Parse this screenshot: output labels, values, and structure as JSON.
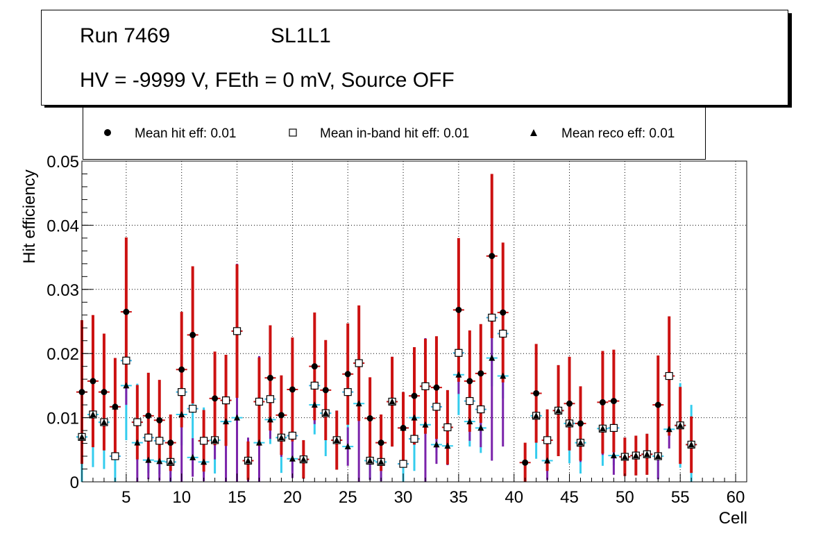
{
  "header": {
    "run": "Run 7469",
    "layer": "SL1L1",
    "conditions": "HV = -9999 V, FEth = 0 mV, Source OFF"
  },
  "legend": [
    {
      "label": "Mean hit  eff: 0.01",
      "marker": "filled-circle"
    },
    {
      "label": "Mean in-band hit eff: 0.01",
      "marker": "open-square"
    },
    {
      "label": "Mean reco eff: 0.01",
      "marker": "filled-triangle"
    }
  ],
  "chart_data": {
    "type": "scatter",
    "xlabel": "Cell",
    "ylabel": "Hit efficiency",
    "xlim": [
      1,
      61
    ],
    "ylim": [
      0,
      0.05
    ],
    "xticks": [
      "5",
      "10",
      "15",
      "20",
      "25",
      "30",
      "35",
      "40",
      "45",
      "50",
      "55",
      "60"
    ],
    "yticks": [
      "0",
      "0.01",
      "0.02",
      "0.03",
      "0.04",
      "0.05"
    ],
    "grid": true,
    "series": [
      {
        "name": "Mean hit  eff: 0.01",
        "marker": "filled-circle",
        "colors": {
          "xerr": "#cc1111",
          "yerr": "#cc1111",
          "marker": "#000000"
        },
        "points": [
          {
            "x": 1,
            "y": 0.014,
            "err": 0.0112
          },
          {
            "x": 2,
            "y": 0.0157,
            "err": 0.0103
          },
          {
            "x": 3,
            "y": 0.014,
            "err": 0.0091
          },
          {
            "x": 4,
            "y": 0.0117,
            "err": 0.0076
          },
          {
            "x": 5,
            "y": 0.0265,
            "err": 0.0116
          },
          {
            "x": 6,
            "y": 0.0093,
            "err": 0.0058
          },
          {
            "x": 7,
            "y": 0.0103,
            "err": 0.0067
          },
          {
            "x": 8,
            "y": 0.0096,
            "err": 0.0063
          },
          {
            "x": 9,
            "y": 0.0061,
            "err": 0.0044
          },
          {
            "x": 10,
            "y": 0.0175,
            "err": 0.009
          },
          {
            "x": 11,
            "y": 0.0229,
            "err": 0.0107
          },
          {
            "x": 12,
            "y": 0.0064,
            "err": 0.0048
          },
          {
            "x": 13,
            "y": 0.013,
            "err": 0.0073
          },
          {
            "x": 14,
            "y": 0.0127,
            "err": 0.0071
          },
          {
            "x": 15,
            "y": 0.0235,
            "err": 0.0104
          },
          {
            "x": 16,
            "y": 0.0033,
            "err": 0.003
          },
          {
            "x": 17,
            "y": 0.0125,
            "err": 0.0069
          },
          {
            "x": 18,
            "y": 0.0162,
            "err": 0.0082
          },
          {
            "x": 19,
            "y": 0.0104,
            "err": 0.0062
          },
          {
            "x": 20,
            "y": 0.0144,
            "err": 0.0081
          },
          {
            "x": 21,
            "y": 0.0035,
            "err": 0.003
          },
          {
            "x": 22,
            "y": 0.018,
            "err": 0.0084
          },
          {
            "x": 23,
            "y": 0.0143,
            "err": 0.0078
          },
          {
            "x": 24,
            "y": 0.0065,
            "err": 0.0046
          },
          {
            "x": 25,
            "y": 0.0168,
            "err": 0.0079
          },
          {
            "x": 26,
            "y": 0.0185,
            "err": 0.009
          },
          {
            "x": 27,
            "y": 0.0099,
            "err": 0.0064
          },
          {
            "x": 28,
            "y": 0.0061,
            "err": 0.0044
          },
          {
            "x": 29,
            "y": 0.0125,
            "err": 0.007
          },
          {
            "x": 30,
            "y": 0.0084,
            "err": 0.0056
          },
          {
            "x": 31,
            "y": 0.0134,
            "err": 0.0076
          },
          {
            "x": 32,
            "y": 0.0149,
            "err": 0.0074
          },
          {
            "x": 33,
            "y": 0.0147,
            "err": 0.008
          },
          {
            "x": 34,
            "y": 0.0085,
            "err": 0.0058
          },
          {
            "x": 35,
            "y": 0.0268,
            "err": 0.0112
          },
          {
            "x": 36,
            "y": 0.0157,
            "err": 0.0079
          },
          {
            "x": 37,
            "y": 0.0169,
            "err": 0.0077
          },
          {
            "x": 38,
            "y": 0.0352,
            "err": 0.0128
          },
          {
            "x": 39,
            "y": 0.0264,
            "err": 0.0109
          },
          {
            "x": 41,
            "y": 0.003,
            "err": 0.0031
          },
          {
            "x": 42,
            "y": 0.0138,
            "err": 0.0077
          },
          {
            "x": 43,
            "y": 0.0065,
            "err": 0.0048
          },
          {
            "x": 44,
            "y": 0.0111,
            "err": 0.0071
          },
          {
            "x": 45,
            "y": 0.0122,
            "err": 0.0073
          },
          {
            "x": 46,
            "y": 0.0091,
            "err": 0.0058
          },
          {
            "x": 48,
            "y": 0.0124,
            "err": 0.008
          },
          {
            "x": 49,
            "y": 0.0126,
            "err": 0.008
          },
          {
            "x": 50,
            "y": 0.0039,
            "err": 0.003
          },
          {
            "x": 51,
            "y": 0.0041,
            "err": 0.0031
          },
          {
            "x": 52,
            "y": 0.0043,
            "err": 0.0032
          },
          {
            "x": 53,
            "y": 0.012,
            "err": 0.0077
          },
          {
            "x": 54,
            "y": 0.0165,
            "err": 0.0093
          },
          {
            "x": 55,
            "y": 0.0088,
            "err": 0.006
          },
          {
            "x": 56,
            "y": 0.0058,
            "err": 0.0044
          }
        ]
      },
      {
        "name": "Mean in-band hit eff: 0.01",
        "marker": "open-square",
        "colors": {
          "xerr": "#33aadd",
          "yerr": "#33ccee",
          "marker": "#000000"
        },
        "points": [
          {
            "x": 1,
            "y": 0.007,
            "err": 0.0075
          },
          {
            "x": 2,
            "y": 0.0105,
            "err": 0.0082
          },
          {
            "x": 3,
            "y": 0.0093,
            "err": 0.0073
          },
          {
            "x": 4,
            "y": 0.004,
            "err": 0.004
          },
          {
            "x": 5,
            "y": 0.0189,
            "err": 0.0124
          },
          {
            "x": 6,
            "y": 0.0093,
            "err": 0.006
          },
          {
            "x": 7,
            "y": 0.0069,
            "err": 0.0055
          },
          {
            "x": 8,
            "y": 0.0064,
            "err": 0.0052
          },
          {
            "x": 9,
            "y": 0.0031,
            "err": 0.0031
          },
          {
            "x": 10,
            "y": 0.014,
            "err": 0.0083
          },
          {
            "x": 11,
            "y": 0.0114,
            "err": 0.008
          },
          {
            "x": 12,
            "y": 0.0064,
            "err": 0.0052
          },
          {
            "x": 13,
            "y": 0.0065,
            "err": 0.0052
          },
          {
            "x": 14,
            "y": 0.0127,
            "err": 0.007
          },
          {
            "x": 15,
            "y": 0.0235,
            "err": 0.0074
          },
          {
            "x": 16,
            "y": 0.0033,
            "err": 0.003
          },
          {
            "x": 17,
            "y": 0.0125,
            "err": 0.0069
          },
          {
            "x": 18,
            "y": 0.0129,
            "err": 0.007
          },
          {
            "x": 19,
            "y": 0.0069,
            "err": 0.0055
          },
          {
            "x": 20,
            "y": 0.0072,
            "err": 0.0055
          },
          {
            "x": 21,
            "y": 0.0035,
            "err": 0.003
          },
          {
            "x": 22,
            "y": 0.015,
            "err": 0.0076
          },
          {
            "x": 23,
            "y": 0.0107,
            "err": 0.0067
          },
          {
            "x": 24,
            "y": 0.0065,
            "err": 0.0046
          },
          {
            "x": 25,
            "y": 0.014,
            "err": 0.0075
          },
          {
            "x": 26,
            "y": 0.0185,
            "err": 0.0078
          },
          {
            "x": 27,
            "y": 0.0033,
            "err": 0.003
          },
          {
            "x": 28,
            "y": 0.0031,
            "err": 0.003
          },
          {
            "x": 29,
            "y": 0.0125,
            "err": 0.007
          },
          {
            "x": 30,
            "y": 0.0028,
            "err": 0.0028
          },
          {
            "x": 31,
            "y": 0.0067,
            "err": 0.005
          },
          {
            "x": 32,
            "y": 0.0149,
            "err": 0.0074
          },
          {
            "x": 33,
            "y": 0.0117,
            "err": 0.0072
          },
          {
            "x": 34,
            "y": 0.0085,
            "err": 0.0058
          },
          {
            "x": 35,
            "y": 0.0201,
            "err": 0.0097
          },
          {
            "x": 36,
            "y": 0.0126,
            "err": 0.0071
          },
          {
            "x": 37,
            "y": 0.0113,
            "err": 0.0068
          },
          {
            "x": 38,
            "y": 0.0256,
            "err": 0.0107
          },
          {
            "x": 39,
            "y": 0.0231,
            "err": 0.0101
          },
          {
            "x": 42,
            "y": 0.0103,
            "err": 0.0067
          },
          {
            "x": 43,
            "y": 0.0065,
            "err": 0.0048
          },
          {
            "x": 44,
            "y": 0.0111,
            "err": 0.0071
          },
          {
            "x": 45,
            "y": 0.0091,
            "err": 0.0062
          },
          {
            "x": 46,
            "y": 0.0061,
            "err": 0.0048
          },
          {
            "x": 48,
            "y": 0.0083,
            "err": 0.0058
          },
          {
            "x": 49,
            "y": 0.0084,
            "err": 0.0058
          },
          {
            "x": 50,
            "y": 0.0039,
            "err": 0.003
          },
          {
            "x": 51,
            "y": 0.0041,
            "err": 0.0031
          },
          {
            "x": 52,
            "y": 0.0043,
            "err": 0.0032
          },
          {
            "x": 53,
            "y": 0.004,
            "err": 0.0036
          },
          {
            "x": 54,
            "y": 0.0165,
            "err": 0.0093
          },
          {
            "x": 55,
            "y": 0.0088,
            "err": 0.0066
          },
          {
            "x": 56,
            "y": 0.0058,
            "err": 0.0062
          }
        ]
      },
      {
        "name": "Mean reco eff: 0.01",
        "marker": "filled-triangle",
        "colors": {
          "xerr": "#33ccee",
          "yerr": "#7a22aa",
          "marker": "#000000"
        },
        "points": [
          {
            "x": 1,
            "y": 0.007,
            "err": 0.0035
          },
          {
            "x": 2,
            "y": 0.0105,
            "err": 0.0038
          },
          {
            "x": 3,
            "y": 0.0093,
            "err": 0.0032
          },
          {
            "x": 4,
            "y": 0.0117,
            "err": 0.0076
          },
          {
            "x": 5,
            "y": 0.015,
            "err": 0.003
          },
          {
            "x": 6,
            "y": 0.0061,
            "err": 0.009
          },
          {
            "x": 7,
            "y": 0.0034,
            "err": 0.003
          },
          {
            "x": 8,
            "y": 0.0032,
            "err": 0.003
          },
          {
            "x": 9,
            "y": 0.0031,
            "err": 0.003
          },
          {
            "x": 10,
            "y": 0.0105,
            "err": 0.012
          },
          {
            "x": 11,
            "y": 0.0038,
            "err": 0.003
          },
          {
            "x": 12,
            "y": 0.0031,
            "err": 0.003
          },
          {
            "x": 13,
            "y": 0.0065,
            "err": 0.003
          },
          {
            "x": 14,
            "y": 0.0094,
            "err": 0.0103
          },
          {
            "x": 15,
            "y": 0.01,
            "err": 0.024
          },
          {
            "x": 16,
            "y": 0.0033,
            "err": 0.0036
          },
          {
            "x": 17,
            "y": 0.0061,
            "err": 0.0135
          },
          {
            "x": 18,
            "y": 0.0097,
            "err": 0.003
          },
          {
            "x": 19,
            "y": 0.0069,
            "err": 0.003
          },
          {
            "x": 20,
            "y": 0.0036,
            "err": 0.003
          },
          {
            "x": 21,
            "y": 0.0035,
            "err": 0.003
          },
          {
            "x": 22,
            "y": 0.012,
            "err": 0.003
          },
          {
            "x": 23,
            "y": 0.0107,
            "err": 0.003
          },
          {
            "x": 24,
            "y": 0.0065,
            "err": 0.003
          },
          {
            "x": 25,
            "y": 0.0055,
            "err": 0.003
          },
          {
            "x": 26,
            "y": 0.0122,
            "err": 0.014
          },
          {
            "x": 27,
            "y": 0.0033,
            "err": 0.003
          },
          {
            "x": 28,
            "y": 0.0031,
            "err": 0.003
          },
          {
            "x": 29,
            "y": 0.0125,
            "err": 0.007
          },
          {
            "x": 30,
            "y": 0.0084,
            "err": 0.0056
          },
          {
            "x": 31,
            "y": 0.01,
            "err": 0.003
          },
          {
            "x": 32,
            "y": 0.0089,
            "err": 0.0135
          },
          {
            "x": 33,
            "y": 0.0058,
            "err": 0.003
          },
          {
            "x": 34,
            "y": 0.0056,
            "err": 0.003
          },
          {
            "x": 35,
            "y": 0.0167,
            "err": 0.003
          },
          {
            "x": 36,
            "y": 0.0094,
            "err": 0.003
          },
          {
            "x": 37,
            "y": 0.0084,
            "err": 0.003
          },
          {
            "x": 38,
            "y": 0.0193,
            "err": 0.016
          },
          {
            "x": 39,
            "y": 0.0165,
            "err": 0.011
          },
          {
            "x": 42,
            "y": 0.0103,
            "err": 0.003
          },
          {
            "x": 43,
            "y": 0.0033,
            "err": 0.003
          },
          {
            "x": 44,
            "y": 0.0111,
            "err": 0.003
          },
          {
            "x": 45,
            "y": 0.0091,
            "err": 0.003
          },
          {
            "x": 46,
            "y": 0.0061,
            "err": 0.003
          },
          {
            "x": 48,
            "y": 0.0083,
            "err": 0.0041
          },
          {
            "x": 49,
            "y": 0.0041,
            "err": 0.003
          },
          {
            "x": 50,
            "y": 0.0039,
            "err": 0.003
          },
          {
            "x": 51,
            "y": 0.0041,
            "err": 0.003
          },
          {
            "x": 52,
            "y": 0.0043,
            "err": 0.003
          },
          {
            "x": 53,
            "y": 0.004,
            "err": 0.0036
          },
          {
            "x": 54,
            "y": 0.0082,
            "err": 0.003
          },
          {
            "x": 55,
            "y": 0.0088,
            "err": 0.003
          },
          {
            "x": 56,
            "y": 0.0058,
            "err": 0.003
          }
        ]
      }
    ]
  }
}
